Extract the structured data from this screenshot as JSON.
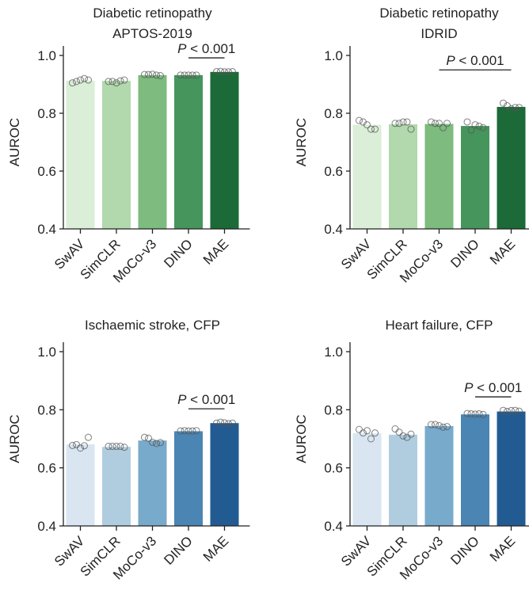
{
  "chart_data": [
    {
      "type": "bar",
      "title": [
        "Diabetic retinopathy",
        "APTOS-2019"
      ],
      "ylabel": "AUROC",
      "ylim": [
        0.4,
        1.0
      ],
      "yticks": [
        "0.4",
        "0.6",
        "0.8",
        "1.0"
      ],
      "categories": [
        "SwAV",
        "SimCLR",
        "MoCo-v3",
        "DINO",
        "MAE"
      ],
      "values": [
        0.913,
        0.912,
        0.932,
        0.932,
        0.943
      ],
      "points": [
        [
          0.905,
          0.91,
          0.915,
          0.92,
          0.915
        ],
        [
          0.91,
          0.91,
          0.905,
          0.912,
          0.915
        ],
        [
          0.934,
          0.934,
          0.935,
          0.932,
          0.93
        ],
        [
          0.932,
          0.932,
          0.932,
          0.932,
          0.932
        ],
        [
          0.944,
          0.945,
          0.943,
          0.943,
          0.944
        ]
      ],
      "colors": [
        "#dbeed8",
        "#b1d9ad",
        "#7dbb7f",
        "#45955c",
        "#1b6a37"
      ],
      "significance": {
        "label": "P < 0.001",
        "from": "DINO",
        "to": "MAE"
      }
    },
    {
      "type": "bar",
      "title": [
        "Diabetic retinopathy",
        "IDRID"
      ],
      "ylabel": "AUROC",
      "ylim": [
        0.4,
        1.0
      ],
      "yticks": [
        "0.4",
        "0.6",
        "0.8",
        "1.0"
      ],
      "categories": [
        "SwAV",
        "SimCLR",
        "MoCo-v3",
        "DINO",
        "MAE"
      ],
      "values": [
        0.76,
        0.762,
        0.763,
        0.756,
        0.822
      ],
      "points": [
        [
          0.775,
          0.77,
          0.76,
          0.745,
          0.745
        ],
        [
          0.765,
          0.765,
          0.77,
          0.77,
          0.745
        ],
        [
          0.77,
          0.765,
          0.765,
          0.75,
          0.765
        ],
        [
          0.77,
          0.742,
          0.76,
          0.755,
          0.75
        ],
        [
          0.835,
          0.826,
          0.815,
          0.82,
          0.82
        ]
      ],
      "colors": [
        "#dbeed8",
        "#b1d9ad",
        "#7dbb7f",
        "#45955c",
        "#1b6a37"
      ],
      "significance": {
        "label": "P < 0.001",
        "from": "MoCo-v3",
        "to": "MAE"
      }
    },
    {
      "type": "bar",
      "title": [
        "Ischaemic stroke, CFP"
      ],
      "ylabel": "AUROC",
      "ylim": [
        0.4,
        1.0
      ],
      "yticks": [
        "0.4",
        "0.6",
        "0.8",
        "1.0"
      ],
      "categories": [
        "SwAV",
        "SimCLR",
        "MoCo-v3",
        "DINO",
        "MAE"
      ],
      "values": [
        0.681,
        0.672,
        0.694,
        0.726,
        0.754
      ],
      "points": [
        [
          0.677,
          0.68,
          0.668,
          0.676,
          0.705
        ],
        [
          0.674,
          0.674,
          0.674,
          0.674,
          0.671
        ],
        [
          0.705,
          0.702,
          0.688,
          0.684,
          0.687
        ],
        [
          0.727,
          0.728,
          0.727,
          0.727,
          0.728
        ],
        [
          0.754,
          0.757,
          0.755,
          0.752,
          0.754
        ]
      ],
      "colors": [
        "#d9e6f2",
        "#b0cde0",
        "#78aacb",
        "#4a85b3",
        "#225b92"
      ],
      "significance": {
        "label": "P < 0.001",
        "from": "DINO",
        "to": "MAE"
      }
    },
    {
      "type": "bar",
      "title": [
        "Heart failure, CFP"
      ],
      "ylabel": "AUROC",
      "ylim": [
        0.4,
        1.0
      ],
      "yticks": [
        "0.4",
        "0.6",
        "0.8",
        "1.0"
      ],
      "categories": [
        "SwAV",
        "SimCLR",
        "MoCo-v3",
        "DINO",
        "MAE"
      ],
      "values": [
        0.719,
        0.714,
        0.744,
        0.784,
        0.794
      ],
      "points": [
        [
          0.732,
          0.72,
          0.728,
          0.7,
          0.72
        ],
        [
          0.734,
          0.723,
          0.71,
          0.705,
          0.716
        ],
        [
          0.749,
          0.749,
          0.745,
          0.74,
          0.742
        ],
        [
          0.787,
          0.786,
          0.785,
          0.786,
          0.784
        ],
        [
          0.798,
          0.794,
          0.797,
          0.798,
          0.795
        ]
      ],
      "colors": [
        "#d9e6f2",
        "#b0cde0",
        "#78aacb",
        "#4a85b3",
        "#225b92"
      ],
      "significance": {
        "label": "P < 0.001",
        "from": "DINO",
        "to": "MAE"
      }
    }
  ]
}
